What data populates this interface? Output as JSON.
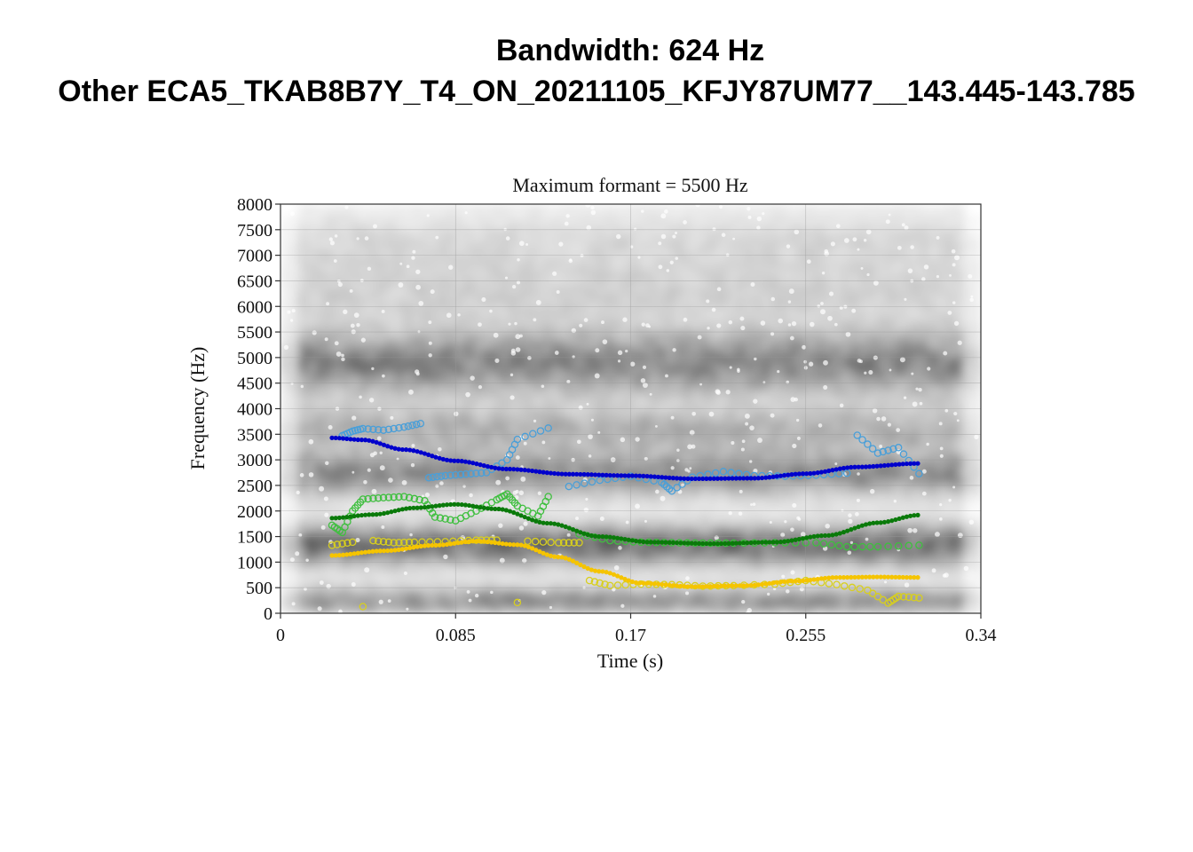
{
  "figure": {
    "title_line1": "Bandwidth: 624 Hz",
    "title_line2": "Other ECA5_TKAB8B7Y_T4_ON_20211105_KFJY87UM77__143.445-143.785"
  },
  "chart_data": {
    "type": "scatter",
    "subtitle": "Maximum formant = 5500 Hz",
    "xlabel": "Time (s)",
    "ylabel": "Frequency (Hz)",
    "xlim": [
      0,
      0.34
    ],
    "ylim": [
      0,
      8000
    ],
    "x_ticks": [
      "0",
      "0.085",
      "0.17",
      "0.255",
      "0.34"
    ],
    "x_tick_values": [
      0,
      0.085,
      0.17,
      0.255,
      0.34
    ],
    "y_ticks": [
      "0",
      "500",
      "1000",
      "1500",
      "2000",
      "2500",
      "3000",
      "3500",
      "4000",
      "4500",
      "5000",
      "5500",
      "6000",
      "6500",
      "7000",
      "7500",
      "8000"
    ],
    "y_tick_values": [
      0,
      500,
      1000,
      1500,
      2000,
      2500,
      3000,
      3500,
      4000,
      4500,
      5000,
      5500,
      6000,
      6500,
      7000,
      7500,
      8000
    ],
    "grid": true,
    "background": "spectrogram (grayscale)",
    "smoothed_tracks": [
      {
        "color": "#0000cc",
        "points": [
          [
            0.025,
            3430
          ],
          [
            0.04,
            3390
          ],
          [
            0.06,
            3200
          ],
          [
            0.085,
            2980
          ],
          [
            0.11,
            2820
          ],
          [
            0.14,
            2720
          ],
          [
            0.17,
            2690
          ],
          [
            0.2,
            2630
          ],
          [
            0.23,
            2640
          ],
          [
            0.255,
            2730
          ],
          [
            0.28,
            2860
          ],
          [
            0.31,
            2930
          ]
        ]
      },
      {
        "color": "#0a7a0a",
        "points": [
          [
            0.025,
            1860
          ],
          [
            0.045,
            1930
          ],
          [
            0.065,
            2060
          ],
          [
            0.085,
            2130
          ],
          [
            0.105,
            2040
          ],
          [
            0.13,
            1760
          ],
          [
            0.155,
            1500
          ],
          [
            0.18,
            1390
          ],
          [
            0.21,
            1360
          ],
          [
            0.24,
            1390
          ],
          [
            0.265,
            1520
          ],
          [
            0.29,
            1770
          ],
          [
            0.31,
            1920
          ]
        ]
      },
      {
        "color": "#f5c400",
        "points": [
          [
            0.025,
            1130
          ],
          [
            0.05,
            1220
          ],
          [
            0.075,
            1330
          ],
          [
            0.095,
            1410
          ],
          [
            0.115,
            1340
          ],
          [
            0.135,
            1100
          ],
          [
            0.155,
            820
          ],
          [
            0.175,
            590
          ],
          [
            0.2,
            520
          ],
          [
            0.225,
            540
          ],
          [
            0.25,
            630
          ],
          [
            0.27,
            700
          ],
          [
            0.29,
            710
          ],
          [
            0.31,
            700
          ]
        ]
      }
    ],
    "raw_tracks": [
      {
        "color": "#4a9fd8",
        "points": [
          [
            0.03,
            3470
          ],
          [
            0.035,
            3560
          ],
          [
            0.04,
            3610
          ],
          [
            0.05,
            3580
          ],
          [
            0.06,
            3640
          ],
          [
            0.068,
            3710
          ],
          [
            0.072,
            2650
          ],
          [
            0.08,
            2690
          ],
          [
            0.09,
            2720
          ],
          [
            0.1,
            2750
          ],
          [
            0.11,
            3000
          ],
          [
            0.115,
            3400
          ],
          [
            0.13,
            3620
          ],
          [
            0.14,
            2480
          ],
          [
            0.155,
            2600
          ],
          [
            0.17,
            2680
          ],
          [
            0.185,
            2560
          ],
          [
            0.19,
            2390
          ],
          [
            0.2,
            2660
          ],
          [
            0.215,
            2770
          ],
          [
            0.23,
            2690
          ],
          [
            0.245,
            2680
          ],
          [
            0.26,
            2700
          ],
          [
            0.275,
            2740
          ],
          [
            0.28,
            3480
          ],
          [
            0.29,
            3130
          ],
          [
            0.3,
            3240
          ],
          [
            0.31,
            2730
          ]
        ]
      },
      {
        "color": "#3fbf3f",
        "points": [
          [
            0.025,
            1720
          ],
          [
            0.03,
            1580
          ],
          [
            0.035,
            2000
          ],
          [
            0.04,
            2230
          ],
          [
            0.05,
            2260
          ],
          [
            0.06,
            2280
          ],
          [
            0.07,
            2200
          ],
          [
            0.075,
            1880
          ],
          [
            0.085,
            1810
          ],
          [
            0.095,
            2000
          ],
          [
            0.105,
            2220
          ],
          [
            0.11,
            2330
          ],
          [
            0.115,
            2100
          ],
          [
            0.125,
            1900
          ],
          [
            0.13,
            2280
          ],
          [
            0.145,
            1550
          ],
          [
            0.16,
            1420
          ],
          [
            0.175,
            1390
          ],
          [
            0.19,
            1380
          ],
          [
            0.205,
            1370
          ],
          [
            0.22,
            1370
          ],
          [
            0.24,
            1380
          ],
          [
            0.26,
            1380
          ],
          [
            0.275,
            1300
          ],
          [
            0.29,
            1300
          ],
          [
            0.31,
            1330
          ]
        ]
      },
      {
        "color": "#d8cf1e",
        "points": [
          [
            0.025,
            1330
          ],
          [
            0.035,
            1390
          ],
          [
            0.04,
            130
          ],
          [
            0.045,
            1420
          ],
          [
            0.055,
            1380
          ],
          [
            0.065,
            1390
          ],
          [
            0.08,
            1400
          ],
          [
            0.095,
            1430
          ],
          [
            0.105,
            1430
          ],
          [
            0.115,
            210
          ],
          [
            0.12,
            1410
          ],
          [
            0.135,
            1380
          ],
          [
            0.145,
            1380
          ],
          [
            0.15,
            640
          ],
          [
            0.16,
            540
          ],
          [
            0.175,
            570
          ],
          [
            0.19,
            560
          ],
          [
            0.205,
            530
          ],
          [
            0.22,
            540
          ],
          [
            0.24,
            570
          ],
          [
            0.255,
            640
          ],
          [
            0.27,
            560
          ],
          [
            0.285,
            450
          ],
          [
            0.295,
            200
          ],
          [
            0.3,
            330
          ],
          [
            0.31,
            300
          ]
        ]
      }
    ]
  }
}
